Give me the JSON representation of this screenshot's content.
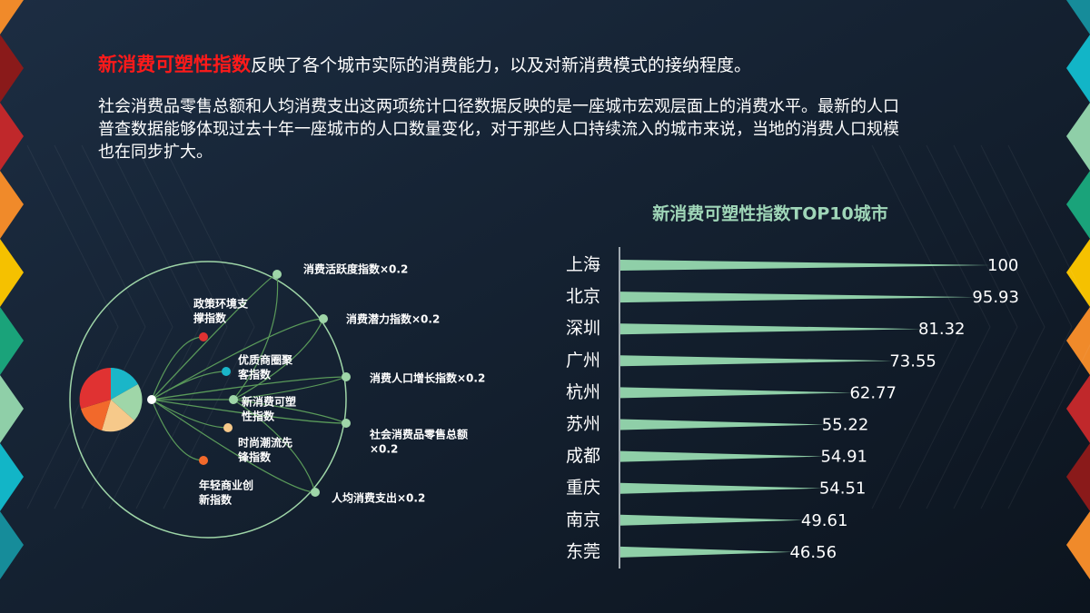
{
  "header": {
    "title": "新消费可塑性指数",
    "title_rest": "反映了各个城市实际的消费能力，以及对新消费模式的接纳程度。",
    "paragraph": [
      "社会消费品零售总额和人均消费支出这两项统计口径数据反映的是一座城市宏观层面上的消费水平。最新的人口",
      "普查数据能够体现过去十年一座城市的人口数量变化，对于那些人口持续流入的城市来说，当地的消费人口规模",
      "也在同步扩大。"
    ]
  },
  "diagram": {
    "left_nodes": [
      {
        "label": [
          "政策环境支",
          "撑指数"
        ]
      },
      {
        "label": [
          "优质商圈聚",
          "客指数"
        ]
      },
      {
        "label": [
          "新消费可塑",
          "性指数"
        ]
      },
      {
        "label": [
          "时尚潮流先",
          "锋指数"
        ]
      },
      {
        "label": [
          "年轻商业创",
          "新指数"
        ]
      }
    ],
    "right_nodes": [
      {
        "label": [
          "消费活跃度指数×0.2"
        ]
      },
      {
        "label": [
          "消费潜力指数×0.2"
        ]
      },
      {
        "label": [
          "消费人口增长指数×0.2"
        ]
      },
      {
        "label": [
          "社会消费品零售总额",
          "×0.2"
        ]
      },
      {
        "label": [
          "人均消费支出×0.2"
        ]
      }
    ]
  },
  "chart_data": {
    "type": "bar",
    "orientation": "horizontal",
    "title": "新消费可塑性指数TOP10城市",
    "categories": [
      "上海",
      "北京",
      "深圳",
      "广州",
      "杭州",
      "苏州",
      "成都",
      "重庆",
      "南京",
      "东莞"
    ],
    "values": [
      100,
      95.93,
      81.32,
      73.55,
      62.77,
      55.22,
      54.91,
      54.51,
      49.61,
      46.56
    ],
    "color": "#8fcfa8"
  }
}
